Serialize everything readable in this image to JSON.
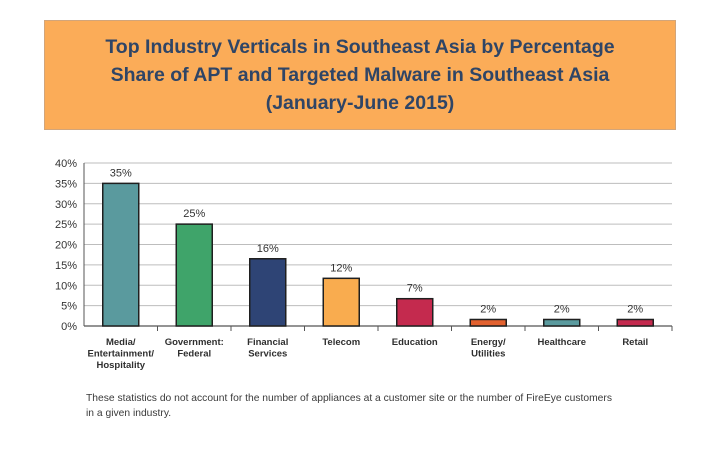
{
  "chart_data": {
    "type": "bar",
    "title_lines": [
      "Top Industry Verticals in Southeast Asia by Percentage",
      "Share of APT and Targeted Malware in Southeast Asia",
      "(January-June 2015)"
    ],
    "categories": [
      [
        "Media/",
        "Entertainment/",
        "Hospitality"
      ],
      [
        "Government:",
        "Federal"
      ],
      [
        "Financial",
        "Services"
      ],
      [
        "Telecom"
      ],
      [
        "Education"
      ],
      [
        "Energy/",
        "Utilities"
      ],
      [
        "Healthcare"
      ],
      [
        "Retail"
      ]
    ],
    "values": [
      35,
      25,
      16.5,
      11.7,
      6.7,
      1.6,
      1.6,
      1.6
    ],
    "value_labels": [
      "35%",
      "25%",
      "16%",
      "12%",
      "7%",
      "2%",
      "2%",
      "2%"
    ],
    "bar_colors": [
      "#5a9a9e",
      "#3fa46a",
      "#2e4475",
      "#f9ac4f",
      "#c42a4e",
      "#e2612f",
      "#5a9a9e",
      "#c42a4e"
    ],
    "y_ticks": [
      "0%",
      "5%",
      "10%",
      "15%",
      "20%",
      "25%",
      "30%",
      "35%",
      "40%"
    ],
    "ylim": [
      0,
      40
    ],
    "grid": true,
    "xlabel": "",
    "ylabel": ""
  },
  "footnote": {
    "lines": [
      "These statistics do not account for the number of appliances at a customer site or the number of FireEye customers",
      "in a given industry."
    ]
  }
}
